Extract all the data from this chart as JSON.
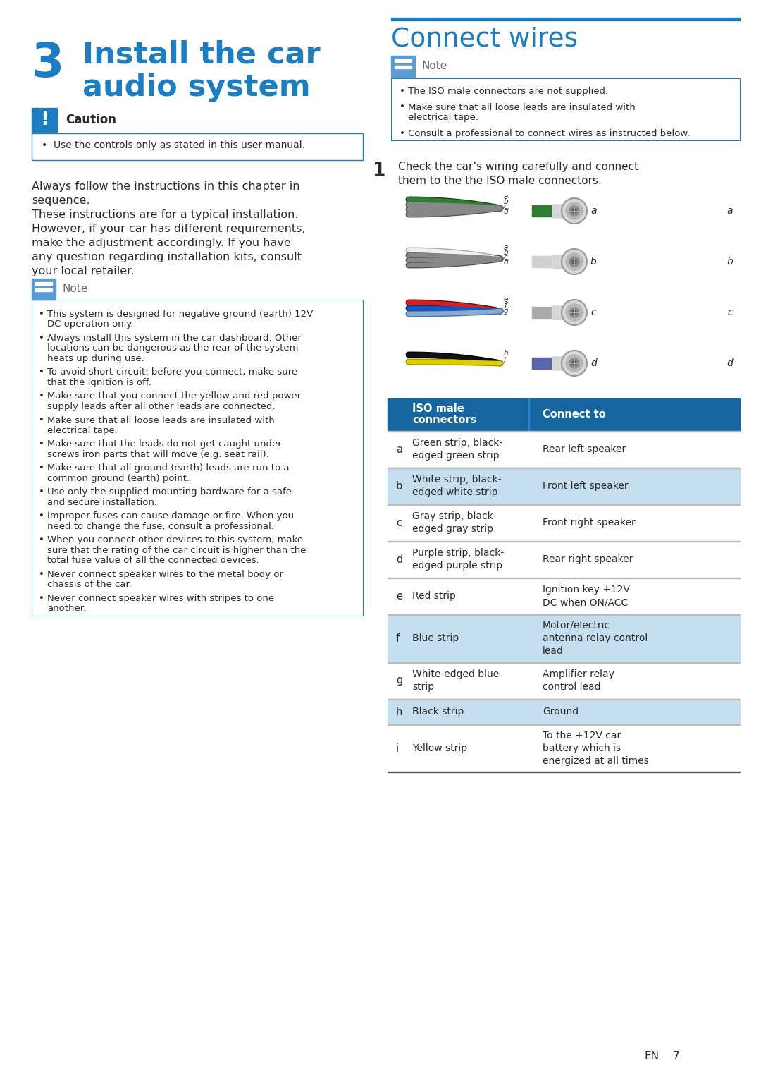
{
  "page_bg": "#ffffff",
  "blue": "#1b7ec2",
  "dark_blue": "#1565a0",
  "light_blue": "#5b9bd5",
  "text_col": "#2a2a2a",
  "gray": "#666666",
  "table_hdr": "#1565a0",
  "row_blue": "#c5dff0",
  "row_blue2": "#d6ebf7",
  "chapter_num": "3",
  "chapter_l1": "Install the car",
  "chapter_l2": "audio system",
  "sec_title": "Connect wires",
  "caut_title": "Caution",
  "caut_text": "Use the controls only as stated in this user manual.",
  "always_text_lines": [
    "Always follow the instructions in this chapter in",
    "sequence.",
    "These instructions are for a typical installation.",
    "However, if your car has different requirements,",
    "make the adjustment accordingly. If you have",
    "any question regarding installation kits, consult",
    "your local retailer."
  ],
  "note_title": "Note",
  "left_note": [
    [
      "This system is designed for negative ground (earth) 12V",
      "DC operation only."
    ],
    [
      "Always install this system in the car dashboard. Other",
      "locations can be dangerous as the rear of the system",
      "heats up during use."
    ],
    [
      "To avoid short-circuit: before you connect, make sure",
      "that the ignition is off."
    ],
    [
      "Make sure that you connect the yellow and red power",
      "supply leads after all other leads are connected."
    ],
    [
      "Make sure that all loose leads are insulated with",
      "electrical tape."
    ],
    [
      "Make sure that the leads do not get caught under",
      "screws iron parts that will move (e.g. seat rail)."
    ],
    [
      "Make sure that all ground (earth) leads are run to a",
      "common ground (earth) point."
    ],
    [
      "Use only the supplied mounting hardware for a safe",
      "and secure installation."
    ],
    [
      "Improper fuses can cause damage or fire. When you",
      "need to change the fuse, consult a professional."
    ],
    [
      "When you connect other devices to this system, make",
      "sure that the rating of the car circuit is higher than the",
      "total fuse value of all the connected devices."
    ],
    [
      "Never connect speaker wires to the metal body or",
      "chassis of the car."
    ],
    [
      "Never connect speaker wires with stripes to one",
      "another."
    ]
  ],
  "right_note": [
    [
      "The ISO male connectors are not supplied."
    ],
    [
      "Make sure that all loose leads are insulated with",
      "electrical tape."
    ],
    [
      "Consult a professional to connect wires as instructed below."
    ]
  ],
  "step1_line1": "Check the car’s wiring carefully and connect",
  "step1_line2": "them to the the ISO male connectors.",
  "table_rows": [
    {
      "letter": "a",
      "col1": "Green strip, black-\nedged green strip",
      "col2": "Rear left speaker",
      "hl": false
    },
    {
      "letter": "b",
      "col1": "White strip, black-\nedged white strip",
      "col2": "Front left speaker",
      "hl": true
    },
    {
      "letter": "c",
      "col1": "Gray strip, black-\nedged gray strip",
      "col2": "Front right speaker",
      "hl": false
    },
    {
      "letter": "d",
      "col1": "Purple strip, black-\nedged purple strip",
      "col2": "Rear right speaker",
      "hl": false
    },
    {
      "letter": "e",
      "col1": "Red strip",
      "col2": "Ignition key +12V\nDC when ON/ACC",
      "hl": false
    },
    {
      "letter": "f",
      "col1": "Blue strip",
      "col2": "Motor/electric\nantenna relay control\nlead",
      "hl": true
    },
    {
      "letter": "g",
      "col1": "White-edged blue\nstrip",
      "col2": "Amplifier relay\ncontrol lead",
      "hl": false
    },
    {
      "letter": "h",
      "col1": "Black strip",
      "col2": "Ground",
      "hl": true
    },
    {
      "letter": "i",
      "col1": "Yellow strip",
      "col2": "To the +12V car\nbattery which is\nenergized at all times",
      "hl": false
    }
  ],
  "pg_num": "7",
  "en": "EN"
}
